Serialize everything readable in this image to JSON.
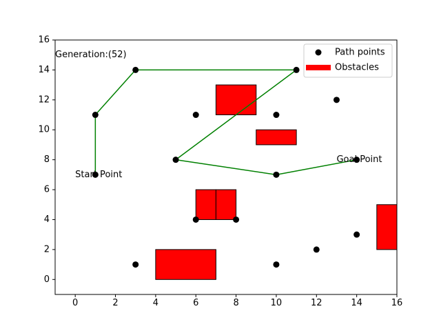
{
  "chart_data": {
    "type": "scatter",
    "xlim": [
      -1,
      16
    ],
    "ylim": [
      -1,
      16
    ],
    "x_ticks": [
      0,
      2,
      4,
      6,
      8,
      10,
      12,
      14,
      16
    ],
    "y_ticks": [
      0,
      2,
      4,
      6,
      8,
      10,
      12,
      14,
      16
    ],
    "grid": false,
    "legend_position": "top-right",
    "legend": [
      {
        "label": "Path points",
        "marker": "circle",
        "color": "#000000"
      },
      {
        "label": "Obstacles",
        "marker": "patch",
        "color": "#ff0000"
      }
    ],
    "path_points": [
      [
        1,
        7
      ],
      [
        1,
        11
      ],
      [
        3,
        14
      ],
      [
        6,
        11
      ],
      [
        10,
        11
      ],
      [
        13,
        12
      ],
      [
        11,
        14
      ],
      [
        5,
        8
      ],
      [
        10,
        7
      ],
      [
        14,
        8
      ],
      [
        6,
        4
      ],
      [
        8,
        4
      ],
      [
        3,
        1
      ],
      [
        10,
        1
      ],
      [
        12,
        2
      ],
      [
        14,
        3
      ]
    ],
    "route": [
      [
        1,
        7
      ],
      [
        1,
        11
      ],
      [
        3,
        14
      ],
      [
        11,
        14
      ],
      [
        5,
        8
      ],
      [
        10,
        7
      ],
      [
        14,
        8
      ]
    ],
    "route_color": "#008000",
    "obstacles": [
      {
        "x": 7,
        "y": 11,
        "width": 2,
        "height": 2
      },
      {
        "x": 9,
        "y": 9,
        "width": 2,
        "height": 1
      },
      {
        "x": 6,
        "y": 4,
        "width": 1,
        "height": 2
      },
      {
        "x": 7,
        "y": 4,
        "width": 1,
        "height": 2
      },
      {
        "x": 4,
        "y": 0,
        "width": 3,
        "height": 2
      },
      {
        "x": 15,
        "y": 2,
        "width": 2,
        "height": 3
      }
    ],
    "obstacle_color": "#ff0000",
    "annotations": [
      {
        "text": "Generation:(52)",
        "x": -1,
        "y": 15
      },
      {
        "text": "Start Point",
        "x": 0,
        "y": 7
      },
      {
        "text": "Goal Point",
        "x": 13,
        "y": 8
      }
    ]
  }
}
